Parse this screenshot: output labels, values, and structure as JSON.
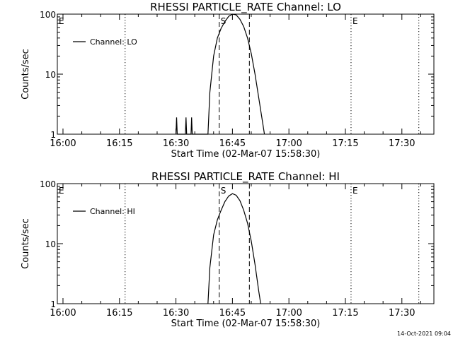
{
  "footer": {
    "timestamp": "14-Oct-2021 09:04"
  },
  "chart_data": [
    {
      "type": "line",
      "title": "RHESSI PARTICLE_RATE Channel: LO",
      "xlabel": "Start Time (02-Mar-07 15:58:30)",
      "ylabel": "Counts/sec",
      "yscale": "log",
      "ylim": [
        1,
        100
      ],
      "yticks": [
        "1",
        "10",
        "100"
      ],
      "xlim": [
        "15:58:30",
        "17:38:30"
      ],
      "xticks": [
        "16:00",
        "16:15",
        "16:30",
        "16:45",
        "17:00",
        "17:15",
        "17:30"
      ],
      "legend": {
        "position": "top-left",
        "entries": [
          "Channel: LO"
        ]
      },
      "series": [
        {
          "name": "Channel: LO",
          "points": [
            [
              "16:30:00",
              1
            ],
            [
              "16:30:10",
              1.9
            ],
            [
              "16:30:20",
              1
            ],
            [
              "16:32:30",
              1
            ],
            [
              "16:32:40",
              1.9
            ],
            [
              "16:32:50",
              1
            ],
            [
              "16:34:00",
              1
            ],
            [
              "16:34:10",
              1.9
            ],
            [
              "16:34:20",
              1
            ],
            [
              "16:38:30",
              1
            ],
            [
              "16:39:00",
              5
            ],
            [
              "16:40:00",
              20
            ],
            [
              "16:41:00",
              40
            ],
            [
              "16:42:00",
              58
            ],
            [
              "16:43:00",
              75
            ],
            [
              "16:44:00",
              92
            ],
            [
              "16:45:00",
              100
            ],
            [
              "16:46:00",
              97
            ],
            [
              "16:47:00",
              82
            ],
            [
              "16:48:00",
              62
            ],
            [
              "16:49:00",
              40
            ],
            [
              "16:50:00",
              22
            ],
            [
              "16:51:00",
              10
            ],
            [
              "16:52:00",
              4
            ],
            [
              "16:53:00",
              1.6
            ],
            [
              "16:53:30",
              1
            ]
          ]
        }
      ],
      "markers": [
        {
          "label": "E",
          "time": "15:58:30",
          "style": "dotted"
        },
        {
          "label": "",
          "time": "16:16:30",
          "style": "dotted"
        },
        {
          "label": "S",
          "time": "16:41:30",
          "style": "dashed"
        },
        {
          "label": "",
          "time": "16:49:30",
          "style": "dashed"
        },
        {
          "label": "E",
          "time": "17:16:30",
          "style": "dotted"
        },
        {
          "label": "",
          "time": "17:34:30",
          "style": "dotted"
        }
      ]
    },
    {
      "type": "line",
      "title": "RHESSI PARTICLE_RATE Channel: HI",
      "xlabel": "Start Time (02-Mar-07 15:58:30)",
      "ylabel": "Counts/sec",
      "yscale": "log",
      "ylim": [
        1,
        100
      ],
      "yticks": [
        "1",
        "10",
        "100"
      ],
      "xlim": [
        "15:58:30",
        "17:38:30"
      ],
      "xticks": [
        "16:00",
        "16:15",
        "16:30",
        "16:45",
        "17:00",
        "17:15",
        "17:30"
      ],
      "legend": {
        "position": "top-left",
        "entries": [
          "Channel: HI"
        ]
      },
      "series": [
        {
          "name": "Channel: HI",
          "points": [
            [
              "16:38:30",
              1
            ],
            [
              "16:39:00",
              4
            ],
            [
              "16:40:00",
              14
            ],
            [
              "16:41:00",
              25
            ],
            [
              "16:42:00",
              36
            ],
            [
              "16:43:00",
              50
            ],
            [
              "16:44:00",
              62
            ],
            [
              "16:45:00",
              68
            ],
            [
              "16:46:00",
              64
            ],
            [
              "16:47:00",
              52
            ],
            [
              "16:48:00",
              36
            ],
            [
              "16:49:00",
              22
            ],
            [
              "16:50:00",
              11
            ],
            [
              "16:51:00",
              4.5
            ],
            [
              "16:52:00",
              1.6
            ],
            [
              "16:52:30",
              1
            ]
          ]
        }
      ],
      "markers": [
        {
          "label": "E",
          "time": "15:58:30",
          "style": "dotted"
        },
        {
          "label": "",
          "time": "16:16:30",
          "style": "dotted"
        },
        {
          "label": "S",
          "time": "16:41:30",
          "style": "dashed"
        },
        {
          "label": "",
          "time": "16:49:30",
          "style": "dashed"
        },
        {
          "label": "E",
          "time": "17:16:30",
          "style": "dotted"
        },
        {
          "label": "",
          "time": "17:34:30",
          "style": "dotted"
        }
      ]
    }
  ]
}
